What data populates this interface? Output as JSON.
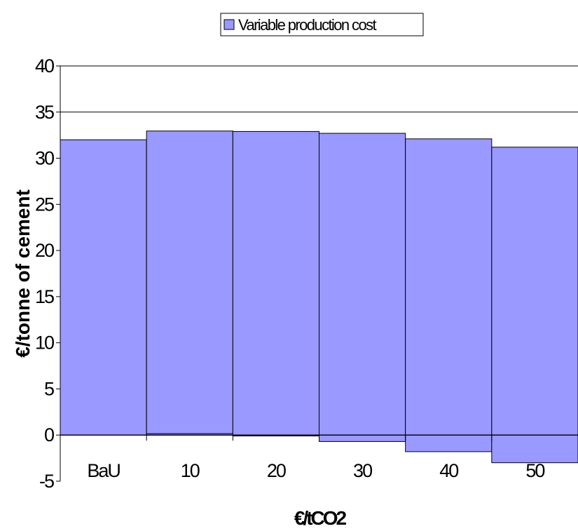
{
  "chart_data": {
    "type": "bar",
    "categories": [
      "BaU",
      "10",
      "20",
      "30",
      "40",
      "50"
    ],
    "series": [
      {
        "name": "Variable production cost",
        "values": [
          32,
          32.8,
          33,
          33.4,
          33.9,
          34.2
        ],
        "color": "#9999ff"
      },
      {
        "values": [
          0,
          0.15,
          -0.1,
          -0.7,
          -1.8,
          -3.0
        ]
      }
    ],
    "stacked": true,
    "xlabel": "€/tCO2",
    "ylabel": "€/tonne of cement",
    "ylim": [
      -5,
      40
    ],
    "yticks": [
      -5,
      0,
      5,
      10,
      15,
      20,
      25,
      30,
      35,
      40
    ],
    "gridlines": true,
    "legend_position": "top"
  }
}
